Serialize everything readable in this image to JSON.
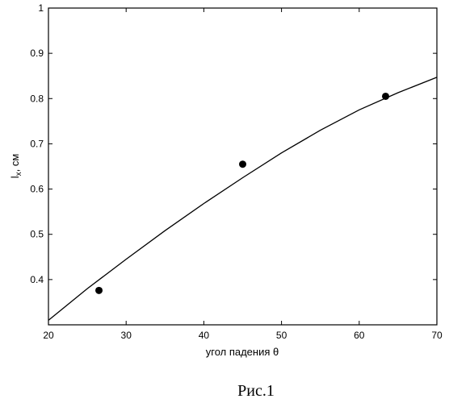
{
  "chart_data": {
    "type": "scatter",
    "xlabel": "угол падения θ",
    "ylabel_main": "l",
    "ylabel_sub": "x",
    "ylabel_unit": ", см",
    "xlim": [
      20,
      70
    ],
    "ylim": [
      0.3,
      1.0
    ],
    "xticks": [
      20,
      30,
      40,
      50,
      60,
      70
    ],
    "yticks": [
      0.4,
      0.5,
      0.6,
      0.7,
      0.8,
      0.9,
      1.0
    ],
    "ytick_labels": [
      "0.4",
      "0.5",
      "0.6",
      "0.7",
      "0.8",
      "0.9",
      "1"
    ],
    "grid": false,
    "series": [
      {
        "kind": "line",
        "x": [
          20,
          25,
          30,
          35,
          40,
          45,
          50,
          55,
          60,
          65,
          70
        ],
        "y": [
          0.31,
          0.38,
          0.445,
          0.508,
          0.568,
          0.625,
          0.68,
          0.73,
          0.775,
          0.813,
          0.847
        ]
      },
      {
        "kind": "points",
        "x": [
          26.5,
          45,
          63.4
        ],
        "y": [
          0.376,
          0.655,
          0.805
        ]
      }
    ]
  },
  "caption": "Рис.1"
}
